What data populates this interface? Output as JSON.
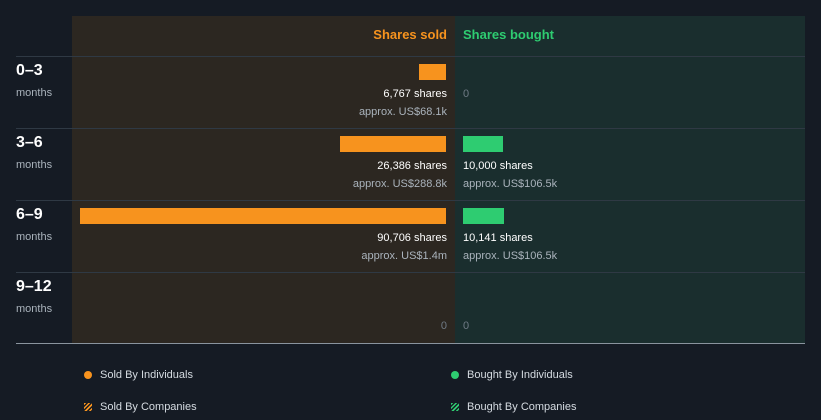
{
  "chart_data": {
    "type": "bar",
    "orientation": "diverging-horizontal",
    "columns": [
      "Shares sold",
      "Shares bought"
    ],
    "categories": [
      {
        "period": "0–3",
        "unit": "months"
      },
      {
        "period": "3–6",
        "unit": "months"
      },
      {
        "period": "6–9",
        "unit": "months"
      },
      {
        "period": "9–12",
        "unit": "months"
      }
    ],
    "series": [
      {
        "name": "Shares sold",
        "color": "#f7931e",
        "values": [
          6767,
          26386,
          90706,
          0
        ],
        "labels": [
          "6,767 shares",
          "26,386 shares",
          "90,706 shares",
          "0"
        ],
        "approx": [
          "approx. US$68.1k",
          "approx. US$288.8k",
          "approx. US$1.4m",
          ""
        ]
      },
      {
        "name": "Shares bought",
        "color": "#2ecc71",
        "values": [
          0,
          10000,
          10141,
          0
        ],
        "labels": [
          "0",
          "10,000 shares",
          "10,141 shares",
          "0"
        ],
        "approx": [
          "",
          "approx. US$106.5k",
          "approx. US$106.5k",
          ""
        ]
      }
    ],
    "legend": [
      {
        "label": "Sold By Individuals",
        "color": "#f7931e",
        "marker": "dot"
      },
      {
        "label": "Bought By Individuals",
        "color": "#2ecc71",
        "marker": "dot"
      },
      {
        "label": "Sold By Companies",
        "color": "#f7931e",
        "marker": "hatch"
      },
      {
        "label": "Bought By Companies",
        "color": "#2ecc71",
        "marker": "hatch"
      }
    ],
    "legend_position": "bottom"
  }
}
